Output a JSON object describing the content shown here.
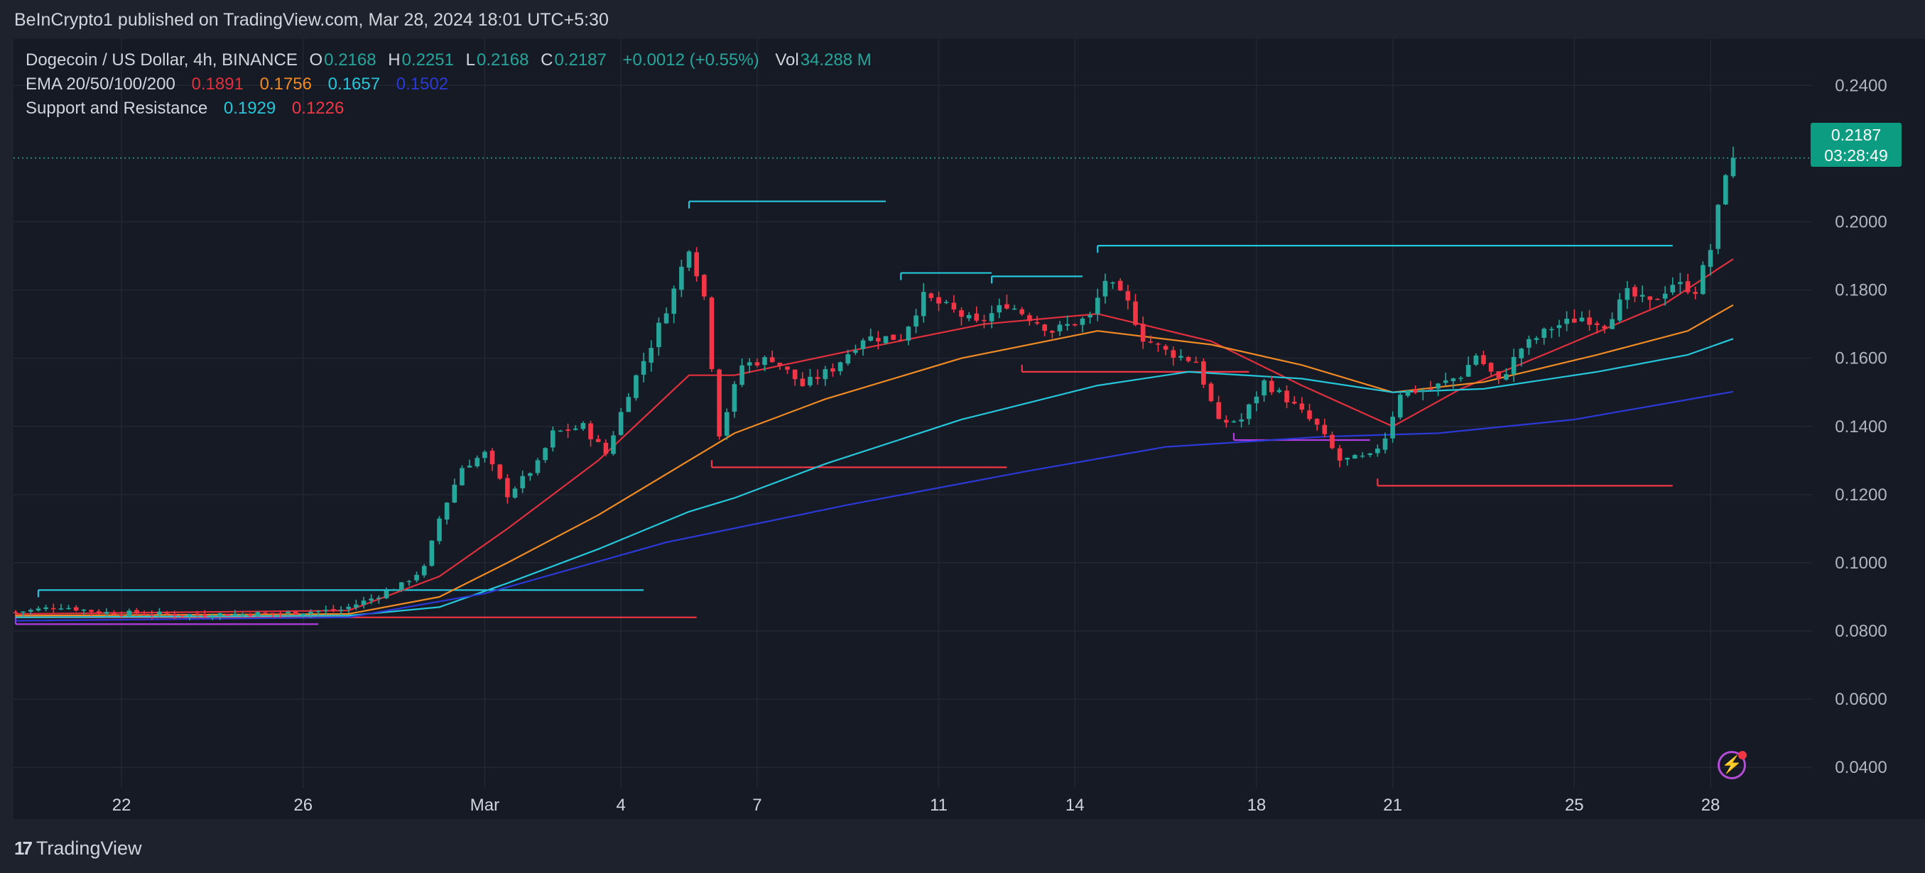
{
  "header": {
    "publisher_line": "BeInCrypto1 published on TradingView.com, Mar 28, 2024 18:01 UTC+5:30"
  },
  "legend": {
    "symbol": "Dogecoin / US Dollar, 4h, BINANCE",
    "o_label": "O",
    "o_value": "0.2168",
    "h_label": "H",
    "h_value": "0.2251",
    "l_label": "L",
    "l_value": "0.2168",
    "c_label": "C",
    "c_value": "0.2187",
    "change": "+0.0012 (+0.55%)",
    "vol_label": "Vol",
    "vol_value": "34.288 M",
    "ema_label": "EMA 20/50/100/200",
    "ema20": "0.1891",
    "ema50": "0.1756",
    "ema100": "0.1657",
    "ema200": "0.1502",
    "sr_label": "Support and Resistance",
    "sr_resistance": "0.1929",
    "sr_support": "0.1226"
  },
  "price_tag": {
    "price": "0.2187",
    "countdown": "03:28:49"
  },
  "footer": {
    "brand": "TradingView"
  },
  "colors": {
    "up": "#26a69a",
    "down": "#f23645",
    "ema20": "#e0303d",
    "ema50": "#f08a24",
    "ema100": "#26c6da",
    "ema200": "#2b39d6",
    "resistance": "#26c6da",
    "support": "#f23645",
    "support_alt": "#b03ce0",
    "price_tag": "#0c9c81"
  },
  "icons": {
    "bolt": "lightning-bolt-icon"
  },
  "chart_data": {
    "type": "candlestick",
    "title": "Dogecoin / US Dollar, 4h, BINANCE",
    "ylim": [
      0.034,
      0.2536
    ],
    "y_ticks": [
      "0.2400",
      "0.2000",
      "0.1800",
      "0.1600",
      "0.1400",
      "0.1200",
      "0.1000",
      "0.0800",
      "0.0600",
      "0.0400"
    ],
    "x_start": "2024-02-19 16:00",
    "bar_interval": "4h",
    "x_ticks": [
      {
        "label": "22",
        "t": "2024-02-22"
      },
      {
        "label": "26",
        "t": "2024-02-26"
      },
      {
        "label": "Mar",
        "t": "2024-03-01"
      },
      {
        "label": "4",
        "t": "2024-03-04"
      },
      {
        "label": "7",
        "t": "2024-03-07"
      },
      {
        "label": "11",
        "t": "2024-03-11"
      },
      {
        "label": "14",
        "t": "2024-03-14"
      },
      {
        "label": "18",
        "t": "2024-03-18"
      },
      {
        "label": "21",
        "t": "2024-03-21"
      },
      {
        "label": "25",
        "t": "2024-03-25"
      },
      {
        "label": "28",
        "t": "2024-03-28"
      }
    ],
    "close_keys": [
      [
        "2024-02-19 16:00",
        0.0855
      ],
      [
        "2024-02-20 16:00",
        0.0872
      ],
      [
        "2024-02-21 12:00",
        0.0855
      ],
      [
        "2024-02-23 12:00",
        0.0848
      ],
      [
        "2024-02-25 12:00",
        0.0852
      ],
      [
        "2024-02-26 20:00",
        0.0862
      ],
      [
        "2024-02-27 12:00",
        0.0895
      ],
      [
        "2024-02-28 04:00",
        0.0935
      ],
      [
        "2024-02-28 16:00",
        0.0985
      ],
      [
        "2024-02-29 00:00",
        0.113
      ],
      [
        "2024-02-29 12:00",
        0.128
      ],
      [
        "2024-03-01 00:00",
        0.132
      ],
      [
        "2024-03-01 12:00",
        0.12
      ],
      [
        "2024-03-02 04:00",
        0.129
      ],
      [
        "2024-03-02 12:00",
        0.138
      ],
      [
        "2024-03-03 04:00",
        0.14
      ],
      [
        "2024-03-03 16:00",
        0.132
      ],
      [
        "2024-03-04 04:00",
        0.15
      ],
      [
        "2024-03-04 16:00",
        0.164
      ],
      [
        "2024-03-05 04:00",
        0.18
      ],
      [
        "2024-03-05 12:00",
        0.193
      ],
      [
        "2024-03-05 20:00",
        0.178
      ],
      [
        "2024-03-06 04:00",
        0.138
      ],
      [
        "2024-03-06 16:00",
        0.158
      ],
      [
        "2024-03-07 08:00",
        0.16
      ],
      [
        "2024-03-08 00:00",
        0.152
      ],
      [
        "2024-03-08 16:00",
        0.157
      ],
      [
        "2024-03-09 08:00",
        0.166
      ],
      [
        "2024-03-10 04:00",
        0.166
      ],
      [
        "2024-03-10 16:00",
        0.178
      ],
      [
        "2024-03-11 04:00",
        0.175
      ],
      [
        "2024-03-11 20:00",
        0.17
      ],
      [
        "2024-03-12 12:00",
        0.176
      ],
      [
        "2024-03-13 00:00",
        0.172
      ],
      [
        "2024-03-13 12:00",
        0.168
      ],
      [
        "2024-03-14 08:00",
        0.172
      ],
      [
        "2024-03-14 16:00",
        0.183
      ],
      [
        "2024-03-15 04:00",
        0.176
      ],
      [
        "2024-03-15 12:00",
        0.166
      ],
      [
        "2024-03-16 00:00",
        0.162
      ],
      [
        "2024-03-16 16:00",
        0.159
      ],
      [
        "2024-03-17 04:00",
        0.141
      ],
      [
        "2024-03-17 16:00",
        0.142
      ],
      [
        "2024-03-18 04:00",
        0.153
      ],
      [
        "2024-03-18 16:00",
        0.148
      ],
      [
        "2024-03-19 08:00",
        0.14
      ],
      [
        "2024-03-19 20:00",
        0.13
      ],
      [
        "2024-03-20 12:00",
        0.131
      ],
      [
        "2024-03-20 20:00",
        0.137
      ],
      [
        "2024-03-21 04:00",
        0.15
      ],
      [
        "2024-03-21 20:00",
        0.151
      ],
      [
        "2024-03-22 12:00",
        0.155
      ],
      [
        "2024-03-22 20:00",
        0.161
      ],
      [
        "2024-03-23 08:00",
        0.153
      ],
      [
        "2024-03-23 20:00",
        0.163
      ],
      [
        "2024-03-24 12:00",
        0.169
      ],
      [
        "2024-03-25 04:00",
        0.172
      ],
      [
        "2024-03-25 16:00",
        0.17
      ],
      [
        "2024-03-26 04:00",
        0.179
      ],
      [
        "2024-03-26 16:00",
        0.176
      ],
      [
        "2024-03-27 04:00",
        0.182
      ],
      [
        "2024-03-27 16:00",
        0.18
      ],
      [
        "2024-03-28 00:00",
        0.192
      ],
      [
        "2024-03-28 08:00",
        0.215
      ],
      [
        "2024-03-28 12:00",
        0.2187
      ]
    ],
    "ema_series": [
      {
        "name": "EMA 20",
        "color": "#e0303d",
        "points": [
          [
            "2024-02-19 16:00",
            0.085
          ],
          [
            "2024-02-27 00:00",
            0.086
          ],
          [
            "2024-02-29 00:00",
            0.096
          ],
          [
            "2024-03-01 12:00",
            0.11
          ],
          [
            "2024-03-03 12:00",
            0.13
          ],
          [
            "2024-03-05 12:00",
            0.155
          ],
          [
            "2024-03-06 12:00",
            0.155
          ],
          [
            "2024-03-09 00:00",
            0.162
          ],
          [
            "2024-03-12 00:00",
            0.17
          ],
          [
            "2024-03-14 12:00",
            0.173
          ],
          [
            "2024-03-17 00:00",
            0.165
          ],
          [
            "2024-03-19 00:00",
            0.152
          ],
          [
            "2024-03-21 00:00",
            0.14
          ],
          [
            "2024-03-22 12:00",
            0.151
          ],
          [
            "2024-03-24 12:00",
            0.162
          ],
          [
            "2024-03-27 00:00",
            0.176
          ],
          [
            "2024-03-28 12:00",
            0.1891
          ]
        ]
      },
      {
        "name": "EMA 50",
        "color": "#f08a24",
        "points": [
          [
            "2024-02-19 16:00",
            0.0845
          ],
          [
            "2024-02-27 00:00",
            0.085
          ],
          [
            "2024-02-29 00:00",
            0.09
          ],
          [
            "2024-03-01 12:00",
            0.1
          ],
          [
            "2024-03-03 12:00",
            0.114
          ],
          [
            "2024-03-05 12:00",
            0.13
          ],
          [
            "2024-03-06 12:00",
            0.138
          ],
          [
            "2024-03-08 12:00",
            0.148
          ],
          [
            "2024-03-11 12:00",
            0.16
          ],
          [
            "2024-03-14 12:00",
            0.168
          ],
          [
            "2024-03-17 00:00",
            0.164
          ],
          [
            "2024-03-19 00:00",
            0.158
          ],
          [
            "2024-03-21 00:00",
            0.15
          ],
          [
            "2024-03-23 00:00",
            0.153
          ],
          [
            "2024-03-25 12:00",
            0.161
          ],
          [
            "2024-03-27 12:00",
            0.168
          ],
          [
            "2024-03-28 12:00",
            0.1756
          ]
        ]
      },
      {
        "name": "EMA 100",
        "color": "#26c6da",
        "points": [
          [
            "2024-02-19 16:00",
            0.084
          ],
          [
            "2024-02-27 00:00",
            0.0845
          ],
          [
            "2024-02-29 00:00",
            0.087
          ],
          [
            "2024-03-01 12:00",
            0.094
          ],
          [
            "2024-03-03 12:00",
            0.104
          ],
          [
            "2024-03-05 12:00",
            0.115
          ],
          [
            "2024-03-06 12:00",
            0.119
          ],
          [
            "2024-03-08 12:00",
            0.129
          ],
          [
            "2024-03-11 12:00",
            0.142
          ],
          [
            "2024-03-14 12:00",
            0.152
          ],
          [
            "2024-03-16 12:00",
            0.156
          ],
          [
            "2024-03-19 00:00",
            0.154
          ],
          [
            "2024-03-21 00:00",
            0.15
          ],
          [
            "2024-03-23 00:00",
            0.151
          ],
          [
            "2024-03-25 12:00",
            0.156
          ],
          [
            "2024-03-27 12:00",
            0.161
          ],
          [
            "2024-03-28 12:00",
            0.1657
          ]
        ]
      },
      {
        "name": "EMA 200",
        "color": "#2b39d6",
        "points": [
          [
            "2024-02-19 16:00",
            0.083
          ],
          [
            "2024-02-27 00:00",
            0.084
          ],
          [
            "2024-03-01 00:00",
            0.091
          ],
          [
            "2024-03-05 00:00",
            0.106
          ],
          [
            "2024-03-09 00:00",
            0.117
          ],
          [
            "2024-03-13 00:00",
            0.127
          ],
          [
            "2024-03-16 00:00",
            0.134
          ],
          [
            "2024-03-19 12:00",
            0.137
          ],
          [
            "2024-03-22 00:00",
            0.138
          ],
          [
            "2024-03-25 00:00",
            0.142
          ],
          [
            "2024-03-28 12:00",
            0.1502
          ]
        ]
      }
    ],
    "levels": [
      {
        "role": "resistance",
        "price": 0.092,
        "from": "2024-02-20 04:00",
        "to": "2024-03-04 12:00"
      },
      {
        "role": "support",
        "price": 0.084,
        "from": "2024-02-19 16:00",
        "to": "2024-03-05 16:00"
      },
      {
        "role": "support_alt",
        "price": 0.082,
        "from": "2024-02-19 16:00",
        "to": "2024-02-26 08:00"
      },
      {
        "role": "resistance",
        "price": 0.206,
        "from": "2024-03-05 12:00",
        "to": "2024-03-09 20:00"
      },
      {
        "role": "support",
        "price": 0.128,
        "from": "2024-03-06 00:00",
        "to": "2024-03-12 12:00"
      },
      {
        "role": "resistance",
        "price": 0.185,
        "from": "2024-03-10 04:00",
        "to": "2024-03-12 04:00"
      },
      {
        "role": "resistance",
        "price": 0.184,
        "from": "2024-03-12 04:00",
        "to": "2024-03-14 04:00"
      },
      {
        "role": "support",
        "price": 0.156,
        "from": "2024-03-12 20:00",
        "to": "2024-03-17 20:00"
      },
      {
        "role": "resistance",
        "price": 0.193,
        "from": "2024-03-14 12:00",
        "to": "2024-03-27 04:00"
      },
      {
        "role": "support_alt",
        "price": 0.136,
        "from": "2024-03-17 12:00",
        "to": "2024-03-20 12:00"
      },
      {
        "role": "support",
        "price": 0.1226,
        "from": "2024-03-20 16:00",
        "to": "2024-03-27 04:00"
      }
    ],
    "current_price": 0.2187
  }
}
